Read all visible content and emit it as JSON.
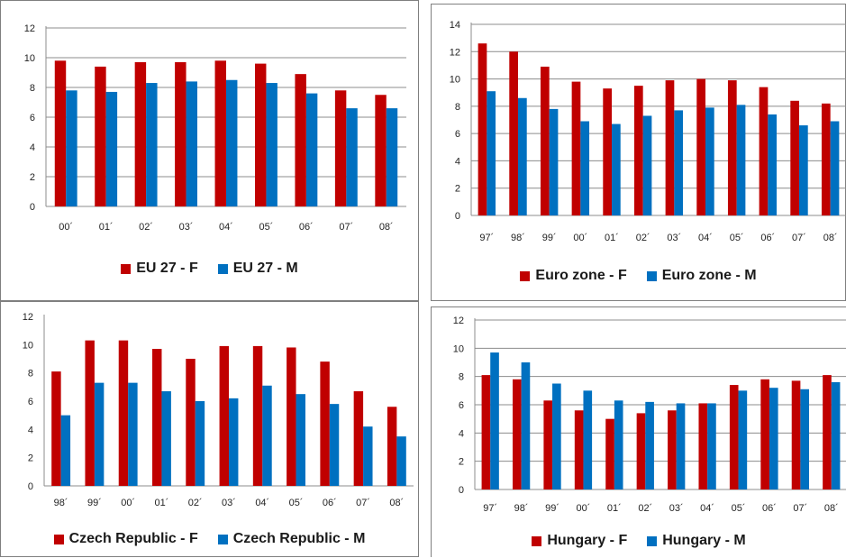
{
  "chart_data": [
    {
      "type": "bar",
      "categories": [
        "00´",
        "01´",
        "02´",
        "03´",
        "04´",
        "05´",
        "06´",
        "07´",
        "08´"
      ],
      "ylim": [
        0,
        12
      ],
      "yticks": [
        0,
        2,
        4,
        6,
        8,
        10,
        12
      ],
      "grid": true,
      "legend_position": "bottom",
      "series": [
        {
          "name": "EU 27 - F",
          "color": "#c00000",
          "values": [
            9.8,
            9.4,
            9.7,
            9.7,
            9.8,
            9.6,
            8.9,
            7.8,
            7.5
          ]
        },
        {
          "name": "EU 27 - M",
          "color": "#0070c0",
          "values": [
            7.8,
            7.7,
            8.3,
            8.4,
            8.5,
            8.3,
            7.6,
            6.6,
            6.6
          ]
        }
      ]
    },
    {
      "type": "bar",
      "categories": [
        "97´",
        "98´",
        "99´",
        "00´",
        "01´",
        "02´",
        "03´",
        "04´",
        "05´",
        "06´",
        "07´",
        "08´"
      ],
      "ylim": [
        0,
        14
      ],
      "yticks": [
        0,
        2,
        4,
        6,
        8,
        10,
        12,
        14
      ],
      "grid": true,
      "legend_position": "bottom",
      "series": [
        {
          "name": "Euro zone - F",
          "color": "#c00000",
          "values": [
            12.6,
            12.0,
            10.9,
            9.8,
            9.3,
            9.5,
            9.9,
            10.0,
            9.9,
            9.4,
            8.4,
            8.2
          ]
        },
        {
          "name": "Euro zone - M",
          "color": "#0070c0",
          "values": [
            9.1,
            8.6,
            7.8,
            6.9,
            6.7,
            7.3,
            7.7,
            7.9,
            8.1,
            7.4,
            6.6,
            6.9
          ]
        }
      ]
    },
    {
      "type": "bar",
      "categories": [
        "98´",
        "99´",
        "00´",
        "01´",
        "02´",
        "03´",
        "04´",
        "05´",
        "06´",
        "07´",
        "08´"
      ],
      "ylim": [
        0,
        12
      ],
      "yticks": [
        0,
        2,
        4,
        6,
        8,
        10,
        12
      ],
      "grid": false,
      "legend_position": "bottom",
      "series": [
        {
          "name": "Czech Republic - F",
          "color": "#c00000",
          "values": [
            8.1,
            10.3,
            10.3,
            9.7,
            9.0,
            9.9,
            9.9,
            9.8,
            8.8,
            6.7,
            5.6
          ]
        },
        {
          "name": "Czech Republic - M",
          "color": "#0070c0",
          "values": [
            5.0,
            7.3,
            7.3,
            6.7,
            6.0,
            6.2,
            7.1,
            6.5,
            5.8,
            4.2,
            3.5
          ]
        }
      ]
    },
    {
      "type": "bar",
      "categories": [
        "97´",
        "98´",
        "99´",
        "00´",
        "01´",
        "02´",
        "03´",
        "04´",
        "05´",
        "06´",
        "07´",
        "08´"
      ],
      "ylim": [
        0,
        12
      ],
      "yticks": [
        0,
        2,
        4,
        6,
        8,
        10,
        12
      ],
      "grid": true,
      "legend_position": "bottom",
      "series": [
        {
          "name": "Hungary - F",
          "color": "#c00000",
          "values": [
            8.1,
            7.8,
            6.3,
            5.6,
            5.0,
            5.4,
            5.6,
            6.1,
            7.4,
            7.8,
            7.7,
            8.1
          ]
        },
        {
          "name": "Hungary - M",
          "color": "#0070c0",
          "values": [
            9.7,
            9.0,
            7.5,
            7.0,
            6.3,
            6.2,
            6.1,
            6.1,
            7.0,
            7.2,
            7.1,
            7.6
          ]
        }
      ]
    }
  ]
}
